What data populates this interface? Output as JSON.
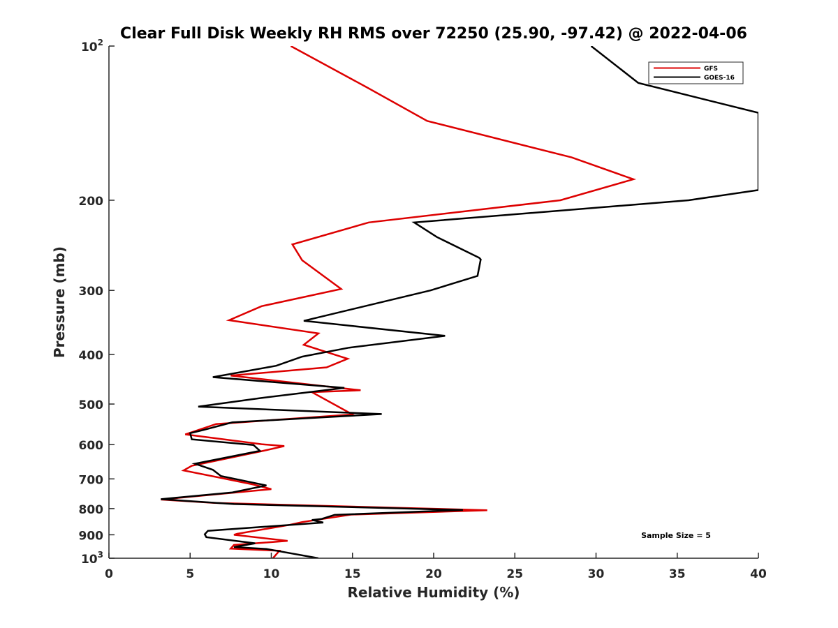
{
  "chart_data": {
    "type": "line",
    "title": "Clear Full Disk Weekly RH RMS over 72250 (25.90, -97.42) @ 2022-04-06",
    "xlabel": "Relative Humidity (%)",
    "ylabel": "Pressure (mb)",
    "xlim": [
      0,
      40
    ],
    "ylim": [
      100,
      1000
    ],
    "y_scale": "log",
    "y_reversed": true,
    "x_ticks": [
      "0",
      "5",
      "10",
      "15",
      "20",
      "25",
      "30",
      "35",
      "40"
    ],
    "y_ticks": [
      {
        "value": 100,
        "base": "10",
        "exp": "2"
      },
      {
        "value": 200,
        "label": "200"
      },
      {
        "value": 300,
        "label": "300"
      },
      {
        "value": 400,
        "label": "400"
      },
      {
        "value": 500,
        "label": "500"
      },
      {
        "value": 600,
        "label": "600"
      },
      {
        "value": 700,
        "label": "700"
      },
      {
        "value": 800,
        "label": "800"
      },
      {
        "value": 900,
        "label": "900"
      },
      {
        "value": 1000,
        "base": "10",
        "exp": "3"
      }
    ],
    "legend_position": "top-right",
    "annotation": "Sample Size = 5",
    "series": [
      {
        "name": "GFS",
        "color": "#dd0000",
        "points": [
          [
            11.2,
            100
          ],
          [
            15.8,
            120
          ],
          [
            19.6,
            140
          ],
          [
            28.5,
            165
          ],
          [
            32.3,
            182
          ],
          [
            27.8,
            200
          ],
          [
            16.0,
            221
          ],
          [
            11.3,
            244
          ],
          [
            11.9,
            262
          ],
          [
            14.3,
            298
          ],
          [
            9.4,
            322
          ],
          [
            7.4,
            343
          ],
          [
            12.9,
            364
          ],
          [
            12.0,
            383
          ],
          [
            14.7,
            408
          ],
          [
            13.4,
            424
          ],
          [
            7.5,
            440
          ],
          [
            15.5,
            470
          ],
          [
            12.5,
            474
          ],
          [
            15.0,
            524
          ],
          [
            6.6,
            547
          ],
          [
            4.7,
            573
          ],
          [
            9.4,
            599
          ],
          [
            10.8,
            604
          ],
          [
            9.4,
            618
          ],
          [
            5.1,
            660
          ],
          [
            4.6,
            674
          ],
          [
            7.0,
            698
          ],
          [
            8.9,
            718
          ],
          [
            10.0,
            733
          ],
          [
            3.2,
            768
          ],
          [
            6.5,
            780
          ],
          [
            23.3,
            806
          ],
          [
            14.9,
            822
          ],
          [
            11.9,
            850
          ],
          [
            11.1,
            861
          ],
          [
            7.9,
            896
          ],
          [
            7.7,
            900
          ],
          [
            11.0,
            925
          ],
          [
            7.7,
            942
          ],
          [
            7.5,
            958
          ],
          [
            10.5,
            967
          ],
          [
            10.1,
            1000
          ]
        ]
      },
      {
        "name": "GOES-16",
        "color": "#000000",
        "points": [
          [
            29.7,
            100
          ],
          [
            32.6,
            118
          ],
          [
            40.0,
            135
          ],
          [
            40.0,
            191
          ],
          [
            35.7,
            200
          ],
          [
            18.8,
            221
          ],
          [
            20.2,
            236
          ],
          [
            22.8,
            259
          ],
          [
            22.9,
            261
          ],
          [
            22.7,
            281
          ],
          [
            19.8,
            300
          ],
          [
            12.0,
            344
          ],
          [
            20.7,
            368
          ],
          [
            14.8,
            388
          ],
          [
            11.9,
            404
          ],
          [
            10.3,
            421
          ],
          [
            6.4,
            443
          ],
          [
            14.5,
            465
          ],
          [
            9.3,
            487
          ],
          [
            5.5,
            506
          ],
          [
            16.8,
            523
          ],
          [
            7.6,
            543
          ],
          [
            5.8,
            562
          ],
          [
            5.0,
            570
          ],
          [
            5.1,
            586
          ],
          [
            8.9,
            601
          ],
          [
            9.3,
            617
          ],
          [
            5.3,
            654
          ],
          [
            6.4,
            672
          ],
          [
            6.9,
            691
          ],
          [
            9.7,
            721
          ],
          [
            7.6,
            744
          ],
          [
            3.2,
            767
          ],
          [
            7.7,
            784
          ],
          [
            21.8,
            805
          ],
          [
            13.9,
            823
          ],
          [
            13.1,
            838
          ],
          [
            12.5,
            842
          ],
          [
            13.2,
            852
          ],
          [
            6.1,
            884
          ],
          [
            5.9,
            898
          ],
          [
            6.0,
            910
          ],
          [
            9.0,
            935
          ],
          [
            7.7,
            951
          ],
          [
            9.7,
            959
          ],
          [
            12.9,
            1000
          ]
        ]
      }
    ]
  }
}
